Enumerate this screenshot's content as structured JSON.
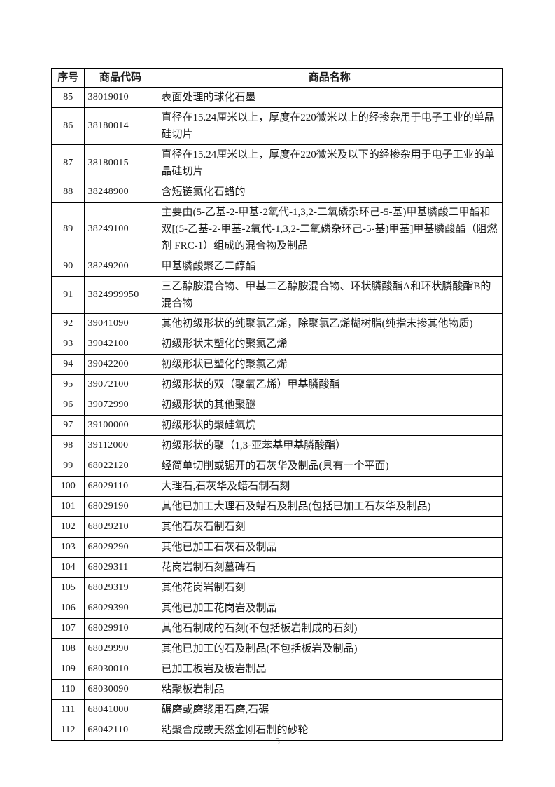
{
  "page": {
    "number": "5"
  },
  "table": {
    "headers": [
      "序号",
      "商品代码",
      "商品名称"
    ],
    "rows": [
      {
        "no": "85",
        "code": "38019010",
        "name": "表面处理的球化石墨"
      },
      {
        "no": "86",
        "code": "38180014",
        "name": "直径在15.24厘米以上，厚度在220微米以上的经掺杂用于电子工业的单晶硅切片"
      },
      {
        "no": "87",
        "code": "38180015",
        "name": "直径在15.24厘米以上，厚度在220微米及以下的经掺杂用于电子工业的单晶硅切片"
      },
      {
        "no": "88",
        "code": "38248900",
        "name": "含短链氯化石蜡的"
      },
      {
        "no": "89",
        "code": "38249100",
        "name": "主要由(5-乙基-2-甲基-2氧代-1,3,2-二氧磷杂环己-5-基)甲基膦酸二甲酯和双[(5-乙基-2-甲基-2氧代-1,3,2-二氧磷杂环己-5-基)甲基]甲基膦酸酯（阻燃剂 FRC-1）组成的混合物及制品"
      },
      {
        "no": "90",
        "code": "38249200",
        "name": "甲基膦酸聚乙二醇酯"
      },
      {
        "no": "91",
        "code": "3824999950",
        "name": "三乙醇胺混合物、甲基二乙醇胺混合物、环状膦酸酯A和环状膦酸酯B的混合物"
      },
      {
        "no": "92",
        "code": "39041090",
        "name": "其他初级形状的纯聚氯乙烯，除聚氯乙烯糊树脂(纯指未掺其他物质)"
      },
      {
        "no": "93",
        "code": "39042100",
        "name": "初级形状未塑化的聚氯乙烯"
      },
      {
        "no": "94",
        "code": "39042200",
        "name": "初级形状已塑化的聚氯乙烯"
      },
      {
        "no": "95",
        "code": "39072100",
        "name": "初级形状的双（聚氧乙烯）甲基膦酸酯"
      },
      {
        "no": "96",
        "code": "39072990",
        "name": "初级形状的其他聚醚"
      },
      {
        "no": "97",
        "code": "39100000",
        "name": "初级形状的聚硅氧烷"
      },
      {
        "no": "98",
        "code": "39112000",
        "name": "初级形状的聚（1,3-亚苯基甲基膦酸酯）"
      },
      {
        "no": "99",
        "code": "68022120",
        "name": "经简单切削或锯开的石灰华及制品(具有一个平面)"
      },
      {
        "no": "100",
        "code": "68029110",
        "name": "大理石,石灰华及蜡石制石刻"
      },
      {
        "no": "101",
        "code": "68029190",
        "name": "其他已加工大理石及蜡石及制品(包括已加工石灰华及制品)"
      },
      {
        "no": "102",
        "code": "68029210",
        "name": "其他石灰石制石刻"
      },
      {
        "no": "103",
        "code": "68029290",
        "name": "其他已加工石灰石及制品"
      },
      {
        "no": "104",
        "code": "68029311",
        "name": "花岗岩制石刻墓碑石"
      },
      {
        "no": "105",
        "code": "68029319",
        "name": "其他花岗岩制石刻"
      },
      {
        "no": "106",
        "code": "68029390",
        "name": "其他已加工花岗岩及制品"
      },
      {
        "no": "107",
        "code": "68029910",
        "name": "其他石制成的石刻(不包括板岩制成的石刻)"
      },
      {
        "no": "108",
        "code": "68029990",
        "name": "其他已加工的石及制品(不包括板岩及制品)"
      },
      {
        "no": "109",
        "code": "68030010",
        "name": "已加工板岩及板岩制品"
      },
      {
        "no": "110",
        "code": "68030090",
        "name": "粘聚板岩制品"
      },
      {
        "no": "111",
        "code": "68041000",
        "name": "碾磨或磨浆用石磨,石碾"
      },
      {
        "no": "112",
        "code": "68042110",
        "name": "粘聚合成或天然金刚石制的砂轮"
      }
    ]
  }
}
